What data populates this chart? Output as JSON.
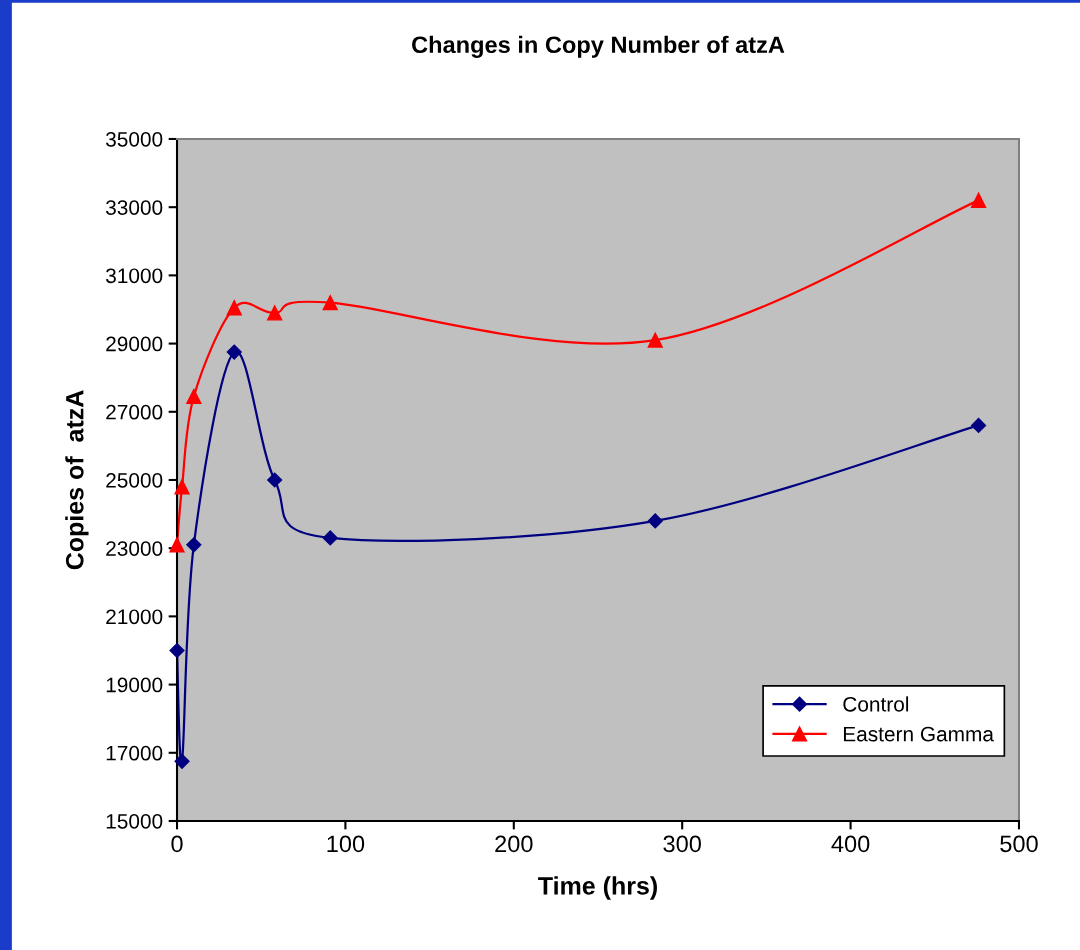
{
  "chart_data": {
    "type": "line",
    "title": "Changes in Copy Number of atzA",
    "xlabel": "Time (hrs)",
    "ylabel": "Copies of  atzA",
    "x": [
      0,
      3,
      10,
      34,
      58,
      91,
      284,
      476
    ],
    "series": [
      {
        "name": "Control",
        "color": "#000080",
        "marker": "diamond",
        "values": [
          20000,
          16750,
          23100,
          28750,
          25000,
          23300,
          23800,
          26600
        ]
      },
      {
        "name": "Eastern Gamma",
        "color": "#ff0000",
        "marker": "triangle",
        "values": [
          23100,
          24800,
          27450,
          30050,
          29900,
          30200,
          29100,
          33200
        ]
      }
    ],
    "xlim": [
      0,
      500
    ],
    "xticks": [
      0,
      100,
      200,
      300,
      400,
      500
    ],
    "ylim": [
      15000,
      35000
    ],
    "yticks": [
      15000,
      17000,
      19000,
      21000,
      23000,
      25000,
      27000,
      29000,
      31000,
      33000,
      35000
    ],
    "grid": false,
    "legend": "bottom right",
    "line_style": "solid"
  }
}
